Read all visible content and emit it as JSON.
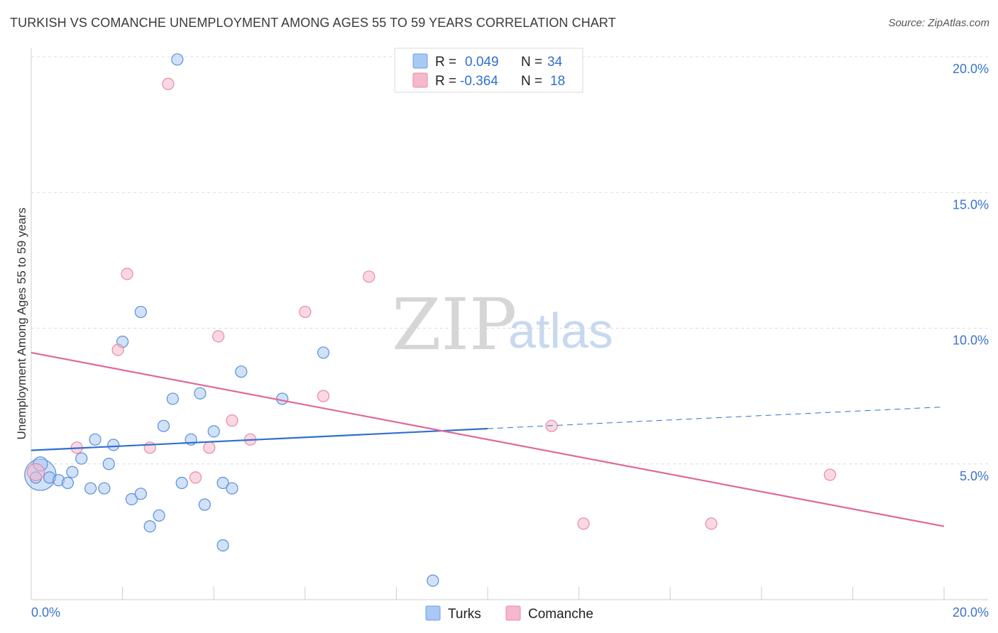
{
  "title": "TURKISH VS COMANCHE UNEMPLOYMENT AMONG AGES 55 TO 59 YEARS CORRELATION CHART",
  "source": "Source: ZipAtlas.com",
  "watermark": {
    "zip": "ZIP",
    "atlas": "atlas"
  },
  "legend_top": [
    {
      "r_label": "R =",
      "r_value": "0.049",
      "n_label": "N =",
      "n_value": "34",
      "color": "#a9c8f3"
    },
    {
      "r_label": "R =",
      "r_value": "-0.364",
      "n_label": "N =",
      "n_value": "18",
      "color": "#f6b8cb"
    }
  ],
  "legend_bottom": [
    {
      "label": "Turks",
      "color": "#a9c8f3"
    },
    {
      "label": "Comanche",
      "color": "#f6b8cb"
    }
  ],
  "chart_data": {
    "type": "scatter",
    "title": "TURKISH VS COMANCHE UNEMPLOYMENT AMONG AGES 55 TO 59 YEARS CORRELATION CHART",
    "xlabel": "",
    "ylabel": "Unemployment Among Ages 55 to 59 years",
    "xlim": [
      0,
      20
    ],
    "ylim": [
      0,
      20
    ],
    "x_tick_labels": [
      {
        "value": 0,
        "label": "0.0%"
      },
      {
        "value": 20,
        "label": "20.0%"
      }
    ],
    "y_tick_labels": [
      {
        "value": 5,
        "label": "5.0%"
      },
      {
        "value": 10,
        "label": "10.0%"
      },
      {
        "value": 15,
        "label": "15.0%"
      },
      {
        "value": 20,
        "label": "20.0%"
      }
    ],
    "series": [
      {
        "name": "Turks",
        "color": "#a9c8f3",
        "stroke": "#5b8fd6",
        "trend": {
          "x0": 0,
          "y0": 5.5,
          "x1": 10.0,
          "y1": 6.3,
          "dash_to_x": 20,
          "dash_to_y": 7.1,
          "color": "#2f6fd1"
        },
        "points": [
          [
            0.2,
            4.6,
            24
          ],
          [
            0.2,
            5.0,
            12
          ],
          [
            0.4,
            4.5,
            10
          ],
          [
            0.6,
            4.4,
            10
          ],
          [
            0.8,
            4.3,
            10
          ],
          [
            0.9,
            4.7,
            10
          ],
          [
            1.1,
            5.2,
            10
          ],
          [
            1.3,
            4.1,
            10
          ],
          [
            1.4,
            5.9,
            10
          ],
          [
            1.6,
            4.1,
            10
          ],
          [
            1.7,
            5.0,
            10
          ],
          [
            1.8,
            5.7,
            10
          ],
          [
            2.0,
            9.5,
            10
          ],
          [
            2.2,
            3.7,
            10
          ],
          [
            2.4,
            10.6,
            10
          ],
          [
            2.4,
            3.9,
            10
          ],
          [
            2.6,
            2.7,
            10
          ],
          [
            2.8,
            3.1,
            10
          ],
          [
            2.9,
            6.4,
            10
          ],
          [
            3.1,
            7.4,
            10
          ],
          [
            3.2,
            19.9,
            10
          ],
          [
            3.3,
            4.3,
            10
          ],
          [
            3.5,
            5.9,
            10
          ],
          [
            3.7,
            7.6,
            10
          ],
          [
            3.8,
            3.5,
            10
          ],
          [
            4.0,
            6.2,
            10
          ],
          [
            4.2,
            4.3,
            10
          ],
          [
            4.2,
            2.0,
            10
          ],
          [
            4.4,
            4.1,
            10
          ],
          [
            4.6,
            8.4,
            10
          ],
          [
            5.5,
            7.4,
            10
          ],
          [
            6.4,
            9.1,
            10
          ],
          [
            8.8,
            0.7,
            10
          ],
          [
            0.1,
            4.5,
            10
          ]
        ]
      },
      {
        "name": "Comanche",
        "color": "#f6b8cb",
        "stroke": "#e889a6",
        "trend": {
          "x0": 0,
          "y0": 9.1,
          "x1": 20,
          "y1": 2.7,
          "color": "#e0689a"
        },
        "points": [
          [
            0.1,
            4.7,
            14
          ],
          [
            1.0,
            5.6,
            10
          ],
          [
            1.9,
            9.2,
            10
          ],
          [
            2.1,
            12.0,
            10
          ],
          [
            2.6,
            5.6,
            10
          ],
          [
            3.0,
            19.0,
            10
          ],
          [
            3.6,
            4.5,
            10
          ],
          [
            3.9,
            5.6,
            10
          ],
          [
            4.1,
            9.7,
            10
          ],
          [
            4.4,
            6.6,
            10
          ],
          [
            4.8,
            5.9,
            10
          ],
          [
            6.0,
            10.6,
            10
          ],
          [
            6.4,
            7.5,
            10
          ],
          [
            7.4,
            11.9,
            10
          ],
          [
            11.4,
            6.4,
            10
          ],
          [
            12.1,
            2.8,
            10
          ],
          [
            14.9,
            2.8,
            10
          ],
          [
            17.5,
            4.6,
            10
          ]
        ]
      }
    ]
  }
}
